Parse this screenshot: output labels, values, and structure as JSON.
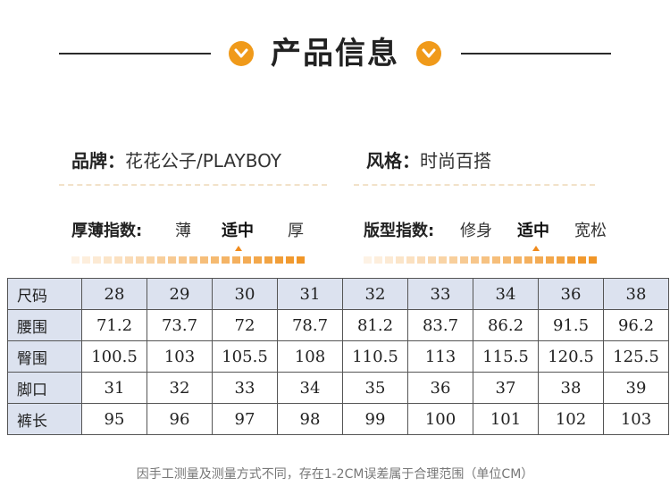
{
  "title": "产品信息",
  "brand": {
    "label": "品牌：",
    "value": "花花公子/PLAYBOY"
  },
  "style": {
    "label": "风格：",
    "value": "时尚百搭"
  },
  "thickness": {
    "label": "厚薄指数:",
    "options": [
      "薄",
      "适中",
      "厚"
    ],
    "selected": "适中"
  },
  "fit": {
    "label": "版型指数:",
    "options": [
      "修身",
      "适中",
      "宽松"
    ],
    "selected": "适中"
  },
  "size_table": {
    "rows": [
      {
        "label": "尺码",
        "values": [
          "28",
          "29",
          "30",
          "31",
          "32",
          "33",
          "34",
          "36",
          "38"
        ]
      },
      {
        "label": "腰围",
        "values": [
          "71.2",
          "73.7",
          "72",
          "78.7",
          "81.2",
          "83.7",
          "86.2",
          "91.5",
          "96.2"
        ]
      },
      {
        "label": "臀围",
        "values": [
          "100.5",
          "103",
          "105.5",
          "108",
          "110.5",
          "113",
          "115.5",
          "120.5",
          "125.5"
        ]
      },
      {
        "label": "脚口",
        "values": [
          "31",
          "32",
          "33",
          "34",
          "35",
          "36",
          "37",
          "38",
          "39"
        ]
      },
      {
        "label": "裤长",
        "values": [
          "95",
          "96",
          "97",
          "98",
          "99",
          "100",
          "101",
          "102",
          "103"
        ]
      }
    ]
  },
  "note": "因手工测量及测量方式不同，存在1-2CM误差属于合理范围（单位CM）",
  "colors": {
    "accent": "#f09a1a",
    "header_bg": "#dce2ef"
  },
  "icons": [
    "chevron-down-icon"
  ]
}
